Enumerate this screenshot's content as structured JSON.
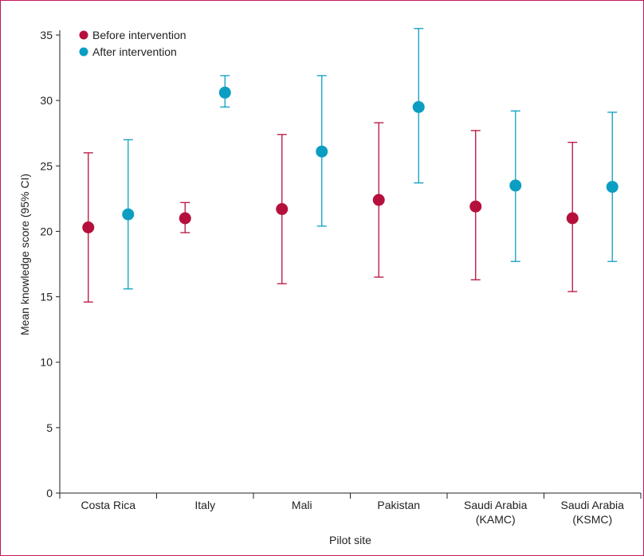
{
  "chart_data": {
    "type": "scatter",
    "xlabel": "Pilot site",
    "ylabel": "Mean knowledge score (95% CI)",
    "ylim": [
      0,
      35
    ],
    "yticks": [
      0,
      5,
      10,
      15,
      20,
      25,
      30,
      35
    ],
    "categories": [
      [
        "Costa Rica"
      ],
      [
        "Italy"
      ],
      [
        "Mali"
      ],
      [
        "Pakistan"
      ],
      [
        "Saudi Arabia",
        "(KAMC)"
      ],
      [
        "Saudi Arabia",
        "(KSMC)"
      ]
    ],
    "series": [
      {
        "name": "Before intervention",
        "color": "#b5103c",
        "mean": [
          20.3,
          21.0,
          21.7,
          22.4,
          21.9,
          21.0
        ],
        "lower": [
          14.6,
          19.9,
          16.0,
          16.5,
          16.3,
          15.4
        ],
        "upper": [
          26.0,
          22.2,
          27.4,
          28.3,
          27.7,
          26.8
        ]
      },
      {
        "name": "After intervention",
        "color": "#0b9ec2",
        "mean": [
          21.3,
          30.6,
          26.1,
          29.5,
          23.5,
          23.4
        ],
        "lower": [
          15.6,
          29.5,
          20.4,
          23.7,
          17.7,
          17.7
        ],
        "upper": [
          27.0,
          31.9,
          31.9,
          35.5,
          29.2,
          29.1
        ]
      }
    ],
    "legend_position": "top-left",
    "frame_color": "#c2185b"
  }
}
